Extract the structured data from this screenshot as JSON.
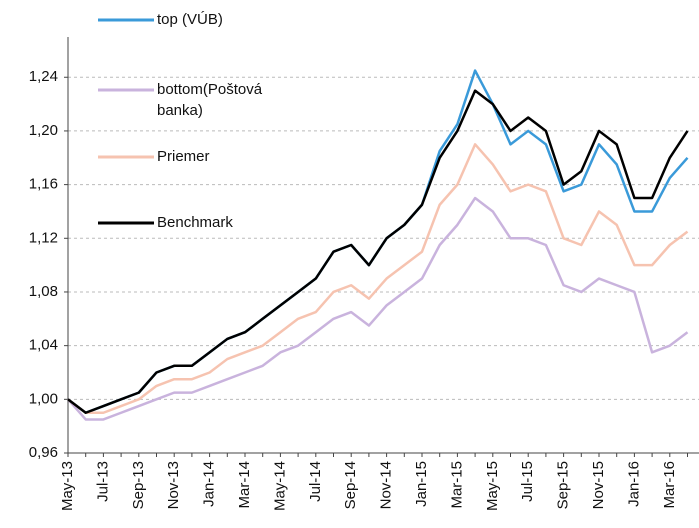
{
  "chart_data": {
    "type": "line",
    "categories": [
      "May-13",
      null,
      "Jul-13",
      null,
      "Sep-13",
      null,
      "Nov-13",
      null,
      "Jan-14",
      null,
      "Mar-14",
      null,
      "May-14",
      null,
      "Jul-14",
      null,
      "Sep-14",
      null,
      "Nov-14",
      null,
      "Jan-15",
      null,
      "Mar-15",
      null,
      "May-15",
      null,
      "Jul-15",
      null,
      "Sep-15",
      null,
      "Nov-15",
      null,
      "Jan-16",
      null,
      "Mar-16",
      null
    ],
    "series": [
      {
        "name": "top (VÚB)",
        "color": "#3a9ad9",
        "values": [
          1.0,
          0.99,
          0.995,
          1.0,
          1.005,
          1.02,
          1.025,
          1.025,
          1.035,
          1.045,
          1.05,
          1.06,
          1.07,
          1.08,
          1.09,
          1.11,
          1.115,
          1.1,
          1.12,
          1.13,
          1.145,
          1.185,
          1.205,
          1.245,
          1.22,
          1.19,
          1.2,
          1.19,
          1.155,
          1.16,
          1.19,
          1.175,
          1.14,
          1.14,
          1.165,
          1.18
        ]
      },
      {
        "name": "bottom(Poštová banka)",
        "color": "#c9b3dd",
        "values": [
          1.0,
          0.985,
          0.985,
          0.99,
          0.995,
          1.0,
          1.005,
          1.005,
          1.01,
          1.015,
          1.02,
          1.025,
          1.035,
          1.04,
          1.05,
          1.06,
          1.065,
          1.055,
          1.07,
          1.08,
          1.09,
          1.115,
          1.13,
          1.15,
          1.14,
          1.12,
          1.12,
          1.115,
          1.085,
          1.08,
          1.09,
          1.085,
          1.08,
          1.035,
          1.04,
          1.05
        ]
      },
      {
        "name": "Priemer",
        "color": "#f6c3b0",
        "values": [
          1.0,
          0.99,
          0.99,
          0.995,
          1.0,
          1.01,
          1.015,
          1.015,
          1.02,
          1.03,
          1.035,
          1.04,
          1.05,
          1.06,
          1.065,
          1.08,
          1.085,
          1.075,
          1.09,
          1.1,
          1.11,
          1.145,
          1.16,
          1.19,
          1.175,
          1.155,
          1.16,
          1.155,
          1.12,
          1.115,
          1.14,
          1.13,
          1.1,
          1.1,
          1.115,
          1.125
        ]
      },
      {
        "name": "Benchmark",
        "color": "#000000",
        "values": [
          1.0,
          0.99,
          0.995,
          1.0,
          1.005,
          1.02,
          1.025,
          1.025,
          1.035,
          1.045,
          1.05,
          1.06,
          1.07,
          1.08,
          1.09,
          1.11,
          1.115,
          1.1,
          1.12,
          1.13,
          1.145,
          1.18,
          1.2,
          1.23,
          1.22,
          1.2,
          1.21,
          1.2,
          1.16,
          1.17,
          1.2,
          1.19,
          1.15,
          1.15,
          1.18,
          1.2
        ]
      }
    ],
    "ylim": [
      0.96,
      1.27
    ],
    "yticks": [
      {
        "value": 0.96,
        "label": "0,96"
      },
      {
        "value": 1.0,
        "label": "1,00"
      },
      {
        "value": 1.04,
        "label": "1,04"
      },
      {
        "value": 1.08,
        "label": "1,08"
      },
      {
        "value": 1.12,
        "label": "1,12"
      },
      {
        "value": 1.16,
        "label": "1,16"
      },
      {
        "value": 1.2,
        "label": "1,20"
      },
      {
        "value": 1.24,
        "label": "1,24"
      }
    ],
    "grid": true
  }
}
